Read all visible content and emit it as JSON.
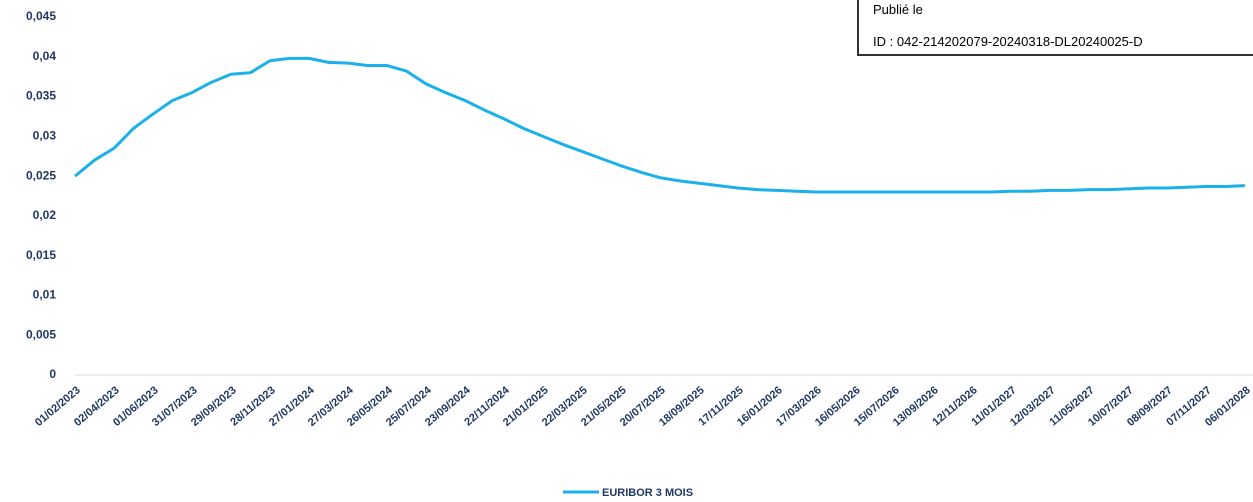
{
  "chart_data": {
    "type": "line",
    "categories": [
      "01/02/2023",
      null,
      "02/04/2023",
      null,
      "01/06/2023",
      null,
      "31/07/2023",
      null,
      "29/09/2023",
      null,
      "28/11/2023",
      null,
      "27/01/2024",
      null,
      "27/03/2024",
      null,
      "26/05/2024",
      null,
      "25/07/2024",
      null,
      "23/09/2024",
      null,
      "22/11/2024",
      null,
      "21/01/2025",
      null,
      "22/03/2025",
      null,
      "21/05/2025",
      null,
      "20/07/2025",
      null,
      "18/09/2025",
      null,
      "17/11/2025",
      null,
      "16/01/2026",
      null,
      "17/03/2026",
      null,
      "16/05/2026",
      null,
      "15/07/2026",
      null,
      "13/09/2026",
      null,
      "12/11/2026",
      null,
      "11/01/2027",
      null,
      "12/03/2027",
      null,
      "11/05/2027",
      null,
      "10/07/2027",
      null,
      "08/09/2027",
      null,
      "07/11/2027",
      null,
      "06/01/2028"
    ],
    "series": [
      {
        "name": "EURIBOR 3 MOIS",
        "color": "#1ab0ea",
        "values": [
          0.025,
          0.027,
          0.0285,
          0.031,
          0.0328,
          0.0345,
          0.0355,
          0.0368,
          0.0378,
          0.038,
          0.0395,
          0.0398,
          0.0398,
          0.0393,
          0.0392,
          0.0389,
          0.0389,
          0.0382,
          0.0366,
          0.0355,
          0.0345,
          0.0333,
          0.0322,
          0.031,
          0.03,
          0.029,
          0.0281,
          0.0272,
          0.0263,
          0.0255,
          0.0248,
          0.0244,
          0.0241,
          0.0238,
          0.0235,
          0.0233,
          0.0232,
          0.0231,
          0.023,
          0.023,
          0.023,
          0.023,
          0.023,
          0.023,
          0.023,
          0.023,
          0.023,
          0.023,
          0.0231,
          0.0231,
          0.0232,
          0.0232,
          0.0233,
          0.0233,
          0.0234,
          0.0235,
          0.0235,
          0.0236,
          0.0237,
          0.0237,
          0.0238
        ]
      }
    ],
    "ylim": [
      0,
      0.045
    ],
    "yticks": [
      0,
      {
        "value": 0.005,
        "label": "0,005"
      },
      {
        "value": 0.01,
        "label": "0,01"
      },
      {
        "value": 0.015,
        "label": "0,015"
      },
      {
        "value": 0.02,
        "label": "0,02"
      },
      {
        "value": 0.025,
        "label": "0,025"
      },
      {
        "value": 0.03,
        "label": "0,03"
      },
      {
        "value": 0.035,
        "label": "0,035"
      },
      {
        "value": 0.04,
        "label": "0,04"
      },
      {
        "value": 0.045,
        "label": "0,045"
      }
    ],
    "grid": false,
    "legend": "bottom"
  },
  "stamp": {
    "published": "Publié le",
    "id": "ID : 042-214202079-20240318-DL20240025-D"
  }
}
